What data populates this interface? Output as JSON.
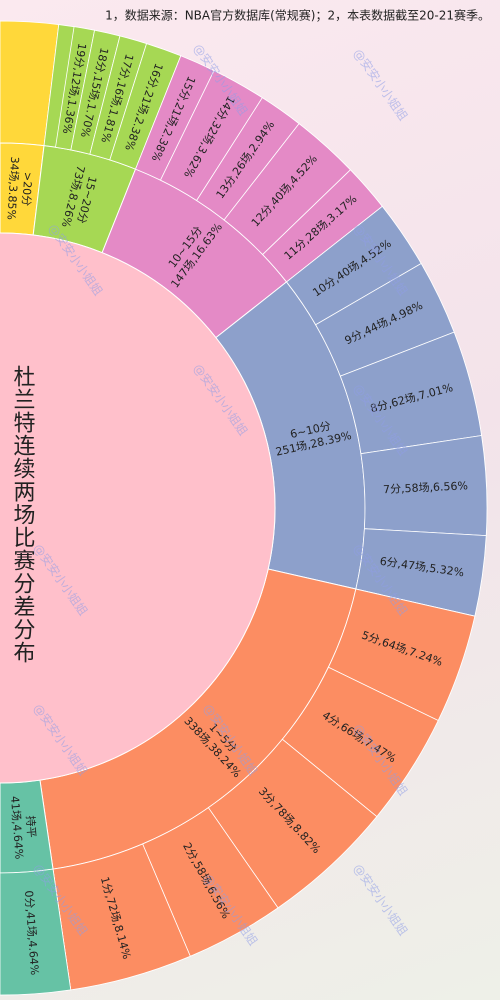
{
  "chart_data": {
    "type": "sunburst",
    "title": "杜兰特连续两场比赛分差分布",
    "note": "1，数据来源：NBA官方数据库(常规赛)；2，本表数据截至20-21赛季。",
    "watermark": "@安安小小姐姐",
    "groups": [
      {
        "name": ">20分",
        "label": "34场,3.85%",
        "value": 3.85,
        "color": "#ffd83a",
        "children": []
      },
      {
        "name": "15~20分",
        "label": "73场,8.26%",
        "value": 8.26,
        "color": "#a6d854",
        "children": [
          {
            "label": "19分,12场,1.36%",
            "value": 1.36
          },
          {
            "label": "18分,15场,1.70%",
            "value": 1.7
          },
          {
            "label": "17分,16场,1.81%",
            "value": 1.81
          },
          {
            "label": "16分,21场,2.38%",
            "value": 2.38
          }
        ]
      },
      {
        "name": "10~15分",
        "label": "147场,16.63%",
        "value": 16.63,
        "color": "#e48ac6",
        "children": [
          {
            "label": "15分,21场,2.38%",
            "value": 2.38
          },
          {
            "label": "14分,32场,3.62%",
            "value": 3.62
          },
          {
            "label": "13分,26场,2.94%",
            "value": 2.94
          },
          {
            "label": "12分,40场,4.52%",
            "value": 4.52
          },
          {
            "label": "11分,28场,3.17%",
            "value": 3.17
          }
        ]
      },
      {
        "name": "6~10分",
        "label": "251场,28.39%",
        "value": 28.39,
        "color": "#8da0cb",
        "children": [
          {
            "label": "10分,40场,4.52%",
            "value": 4.52
          },
          {
            "label": "9分,44场,4.98%",
            "value": 4.98
          },
          {
            "label": "8分,62场,7.01%",
            "value": 7.01
          },
          {
            "label": "7分,58场,6.56%",
            "value": 6.56
          },
          {
            "label": "6分,47场,5.32%",
            "value": 5.32
          }
        ]
      },
      {
        "name": "1~5分",
        "label": "338场,38.24%",
        "value": 38.24,
        "color": "#fc8d62",
        "children": [
          {
            "label": "5分,64场,7.24%",
            "value": 7.24
          },
          {
            "label": "4分,66场,7.47%",
            "value": 7.47
          },
          {
            "label": "3分,78场,8.82%",
            "value": 8.82
          },
          {
            "label": "2分,58场,6.56%",
            "value": 6.56
          },
          {
            "label": "1分,72场,8.14%",
            "value": 8.14
          }
        ]
      },
      {
        "name": "持平",
        "label": "41场,4.64%",
        "value": 4.64,
        "color": "#66c2a5",
        "children": [
          {
            "label": "0分,41场,4.64%",
            "value": 4.64
          }
        ]
      }
    ]
  }
}
